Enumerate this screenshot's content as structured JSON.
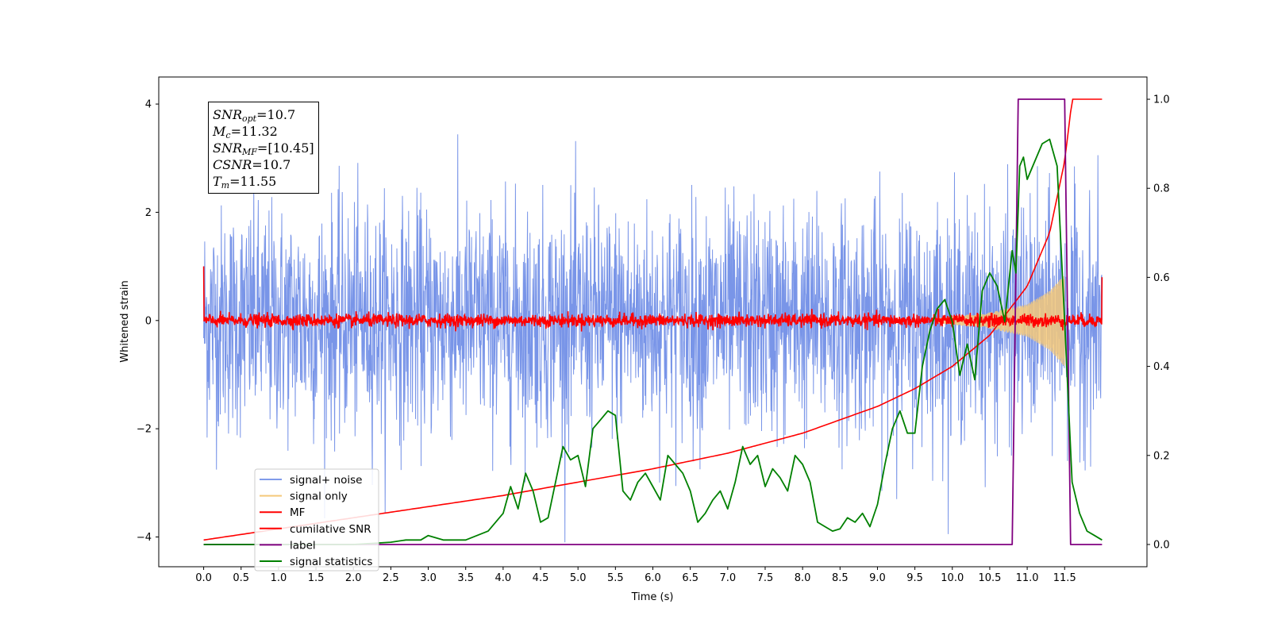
{
  "chart_data": {
    "type": "line",
    "xlabel": "Time (s)",
    "ylabel": "Whitened strain",
    "x_ticks": [
      "0.0",
      "0.5",
      "1.0",
      "1.5",
      "2.0",
      "2.5",
      "3.0",
      "3.5",
      "4.0",
      "4.5",
      "5.0",
      "5.5",
      "6.0",
      "6.5",
      "7.0",
      "7.5",
      "8.0",
      "8.5",
      "9.0",
      "9.5",
      "10.0",
      "10.5",
      "11.0",
      "11.5"
    ],
    "xlim": [
      -0.6,
      12.6
    ],
    "y_left_ticks": [
      "4",
      "2",
      "0",
      "−2",
      "−4"
    ],
    "ylim_left": [
      -4.55,
      4.5
    ],
    "y_right_ticks": [
      "1.0",
      "0.8",
      "0.6",
      "0.4",
      "0.2",
      "0.0"
    ],
    "ylim_right": [
      -0.05,
      1.05
    ],
    "grid": false,
    "legend_position": "lower-left",
    "legend": [
      {
        "label": "signal+ noise",
        "color": "#6a8ae6"
      },
      {
        "label": "signal only",
        "color": "#f5c97a"
      },
      {
        "label": "MF",
        "color": "#ff0000"
      },
      {
        "label": "cumilative SNR",
        "color": "#ff0000"
      },
      {
        "label": "label",
        "color": "#800080"
      },
      {
        "label": "signal statistics",
        "color": "#008000"
      }
    ],
    "annotation": {
      "snr_opt": {
        "name": "SNR",
        "sub": "opt",
        "value": "=10.7"
      },
      "mc": {
        "name": "M",
        "sub": "c",
        "value": "=11.32"
      },
      "snr_mf": {
        "name": "SNR",
        "sub": "MF",
        "value": "=[10.45]"
      },
      "csnr": {
        "name": "CSNR",
        "value": "=10.7"
      },
      "tm": {
        "name": "T",
        "sub": "m",
        "value": "=11.55"
      }
    },
    "series": [
      {
        "name": "signal+ noise",
        "axis": "left",
        "description": "whitened noise, std approx 1, range approx -4.1 to 4.1, t=0 to 12"
      },
      {
        "name": "signal only",
        "axis": "left",
        "envelope": {
          "t": [
            9.8,
            10.5,
            11.0,
            11.3,
            11.5
          ],
          "amp": [
            0.05,
            0.15,
            0.3,
            0.55,
            0.85
          ]
        }
      },
      {
        "name": "MF",
        "axis": "left",
        "description": "matched filter output, approx 0 +/- 0.2, t=0 to 12, starts at 1.0 and ends at 0.8"
      },
      {
        "name": "cumilative SNR",
        "axis": "right",
        "x": [
          0,
          1,
          2,
          3,
          4,
          5,
          6,
          7,
          8,
          9,
          9.5,
          10,
          10.5,
          11,
          11.3,
          11.5,
          11.6,
          12
        ],
        "y": [
          0.01,
          0.035,
          0.06,
          0.085,
          0.11,
          0.14,
          0.17,
          0.205,
          0.25,
          0.31,
          0.35,
          0.4,
          0.47,
          0.58,
          0.7,
          0.86,
          1.0,
          1.0
        ]
      },
      {
        "name": "label",
        "axis": "right",
        "x": [
          0,
          10.8,
          10.88,
          11.5,
          11.58,
          12
        ],
        "y": [
          0,
          0,
          1,
          1,
          0,
          0
        ]
      },
      {
        "name": "signal statistics",
        "axis": "right",
        "x": [
          0,
          0.5,
          1,
          1.5,
          2,
          2.5,
          2.7,
          2.9,
          3,
          3.1,
          3.2,
          3.5,
          3.8,
          4,
          4.1,
          4.2,
          4.3,
          4.4,
          4.5,
          4.6,
          4.8,
          4.9,
          5.0,
          5.1,
          5.2,
          5.3,
          5.4,
          5.5,
          5.6,
          5.7,
          5.8,
          5.9,
          6.0,
          6.1,
          6.2,
          6.3,
          6.4,
          6.5,
          6.6,
          6.7,
          6.8,
          6.9,
          7.0,
          7.1,
          7.2,
          7.3,
          7.4,
          7.5,
          7.6,
          7.7,
          7.8,
          7.9,
          8.0,
          8.1,
          8.2,
          8.3,
          8.4,
          8.5,
          8.6,
          8.7,
          8.8,
          8.9,
          9.0,
          9.1,
          9.2,
          9.3,
          9.4,
          9.5,
          9.6,
          9.7,
          9.8,
          9.9,
          10.0,
          10.1,
          10.2,
          10.3,
          10.4,
          10.5,
          10.6,
          10.7,
          10.8,
          10.85,
          10.9,
          10.95,
          11.0,
          11.1,
          11.2,
          11.3,
          11.4,
          11.5,
          11.6,
          11.7,
          11.8,
          11.9,
          12.0
        ],
        "y": [
          0,
          0,
          0,
          0,
          0,
          0.005,
          0.01,
          0.01,
          0.02,
          0.015,
          0.01,
          0.01,
          0.03,
          0.07,
          0.13,
          0.08,
          0.16,
          0.12,
          0.05,
          0.06,
          0.22,
          0.19,
          0.2,
          0.13,
          0.26,
          0.28,
          0.3,
          0.29,
          0.12,
          0.1,
          0.14,
          0.16,
          0.13,
          0.1,
          0.2,
          0.18,
          0.16,
          0.12,
          0.05,
          0.07,
          0.1,
          0.12,
          0.08,
          0.14,
          0.22,
          0.18,
          0.2,
          0.13,
          0.17,
          0.15,
          0.12,
          0.2,
          0.18,
          0.14,
          0.05,
          0.04,
          0.03,
          0.035,
          0.06,
          0.05,
          0.07,
          0.04,
          0.09,
          0.18,
          0.26,
          0.3,
          0.25,
          0.25,
          0.4,
          0.48,
          0.53,
          0.55,
          0.5,
          0.38,
          0.45,
          0.37,
          0.57,
          0.61,
          0.58,
          0.5,
          0.66,
          0.61,
          0.85,
          0.87,
          0.82,
          0.86,
          0.9,
          0.91,
          0.85,
          0.5,
          0.14,
          0.07,
          0.03,
          0.02,
          0.01
        ]
      }
    ]
  }
}
